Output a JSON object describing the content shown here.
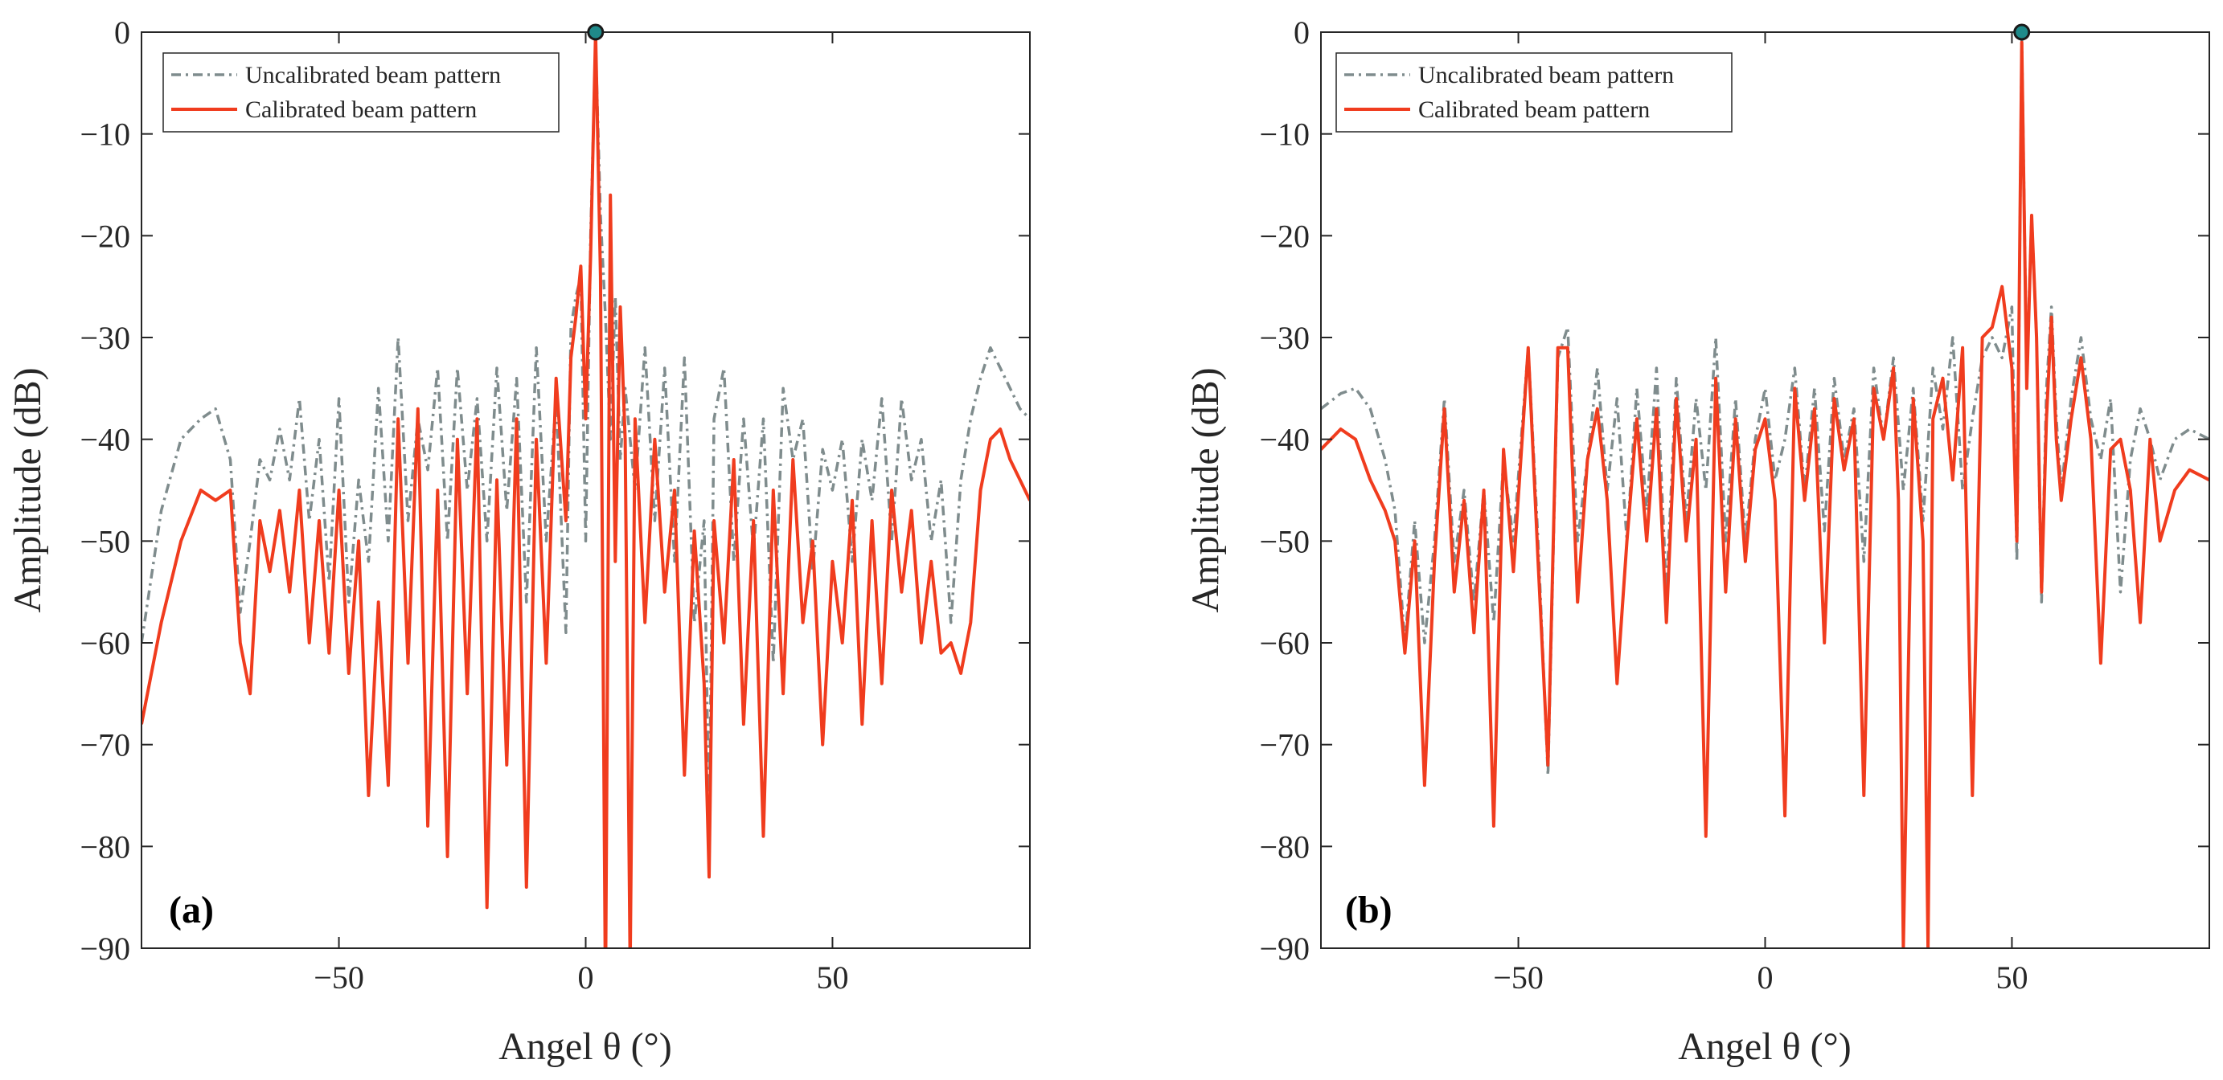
{
  "chart_data": [
    {
      "type": "line",
      "panel_label": "(a)",
      "xlabel": "Angel θ (°)",
      "ylabel": "Amplitude (dB)",
      "xlim": [
        -90,
        90
      ],
      "ylim": [
        -90,
        0
      ],
      "xticks": [
        -50,
        0,
        50
      ],
      "xtick_labels": [
        "−50",
        "0",
        "50"
      ],
      "yticks": [
        0,
        -10,
        -20,
        -30,
        -40,
        -50,
        -60,
        -70,
        -80,
        -90
      ],
      "ytick_labels": [
        "0",
        "−10",
        "−20",
        "−30",
        "−40",
        "−50",
        "−60",
        "−70",
        "−80",
        "−90"
      ],
      "grid": false,
      "legend_position": "top-left",
      "peak_marker": {
        "x": 2,
        "y": 0,
        "color": "#1f8a8a"
      },
      "series": [
        {
          "name": "Uncalibrated beam pattern",
          "color": "#7f8c8d",
          "dash": "dashdot",
          "x": [
            -90,
            -86,
            -82,
            -78,
            -75,
            -72,
            -70,
            -68,
            -66,
            -64,
            -62,
            -60,
            -58,
            -56,
            -54,
            -52,
            -50,
            -48,
            -46,
            -44,
            -42,
            -40,
            -38,
            -36,
            -34,
            -32,
            -30,
            -28,
            -26,
            -24,
            -22,
            -20,
            -18,
            -16,
            -14,
            -12,
            -10,
            -8,
            -6,
            -4,
            -3,
            -2,
            -1,
            0,
            1,
            2,
            3,
            4,
            5,
            6,
            7,
            8,
            10,
            12,
            14,
            16,
            18,
            20,
            22,
            24,
            25,
            26,
            28,
            30,
            32,
            34,
            36,
            38,
            40,
            42,
            44,
            46,
            48,
            50,
            52,
            54,
            56,
            58,
            60,
            62,
            64,
            66,
            68,
            70,
            72,
            74,
            76,
            78,
            80,
            82,
            84,
            86,
            88,
            90
          ],
          "y": [
            -60,
            -47,
            -40,
            -38,
            -37,
            -42,
            -57,
            -50,
            -42,
            -44,
            -39,
            -44,
            -36,
            -48,
            -40,
            -54,
            -36,
            -56,
            -44,
            -52,
            -35,
            -50,
            -30,
            -48,
            -38,
            -43,
            -33,
            -50,
            -33,
            -45,
            -36,
            -50,
            -33,
            -47,
            -34,
            -56,
            -31,
            -50,
            -36,
            -59,
            -29,
            -26,
            -24,
            -50,
            -20,
            -1,
            -18,
            -28,
            -40,
            -26,
            -42,
            -35,
            -45,
            -31,
            -48,
            -33,
            -52,
            -32,
            -58,
            -48,
            -78,
            -38,
            -33,
            -52,
            -38,
            -51,
            -38,
            -62,
            -35,
            -42,
            -38,
            -53,
            -41,
            -45,
            -40,
            -52,
            -40,
            -46,
            -36,
            -50,
            -36,
            -44,
            -40,
            -50,
            -44,
            -58,
            -44,
            -38,
            -34,
            -31,
            -33,
            -35,
            -37,
            -38
          ]
        },
        {
          "name": "Calibrated beam pattern",
          "color": "#f03c1e",
          "dash": "solid",
          "x": [
            -90,
            -86,
            -82,
            -78,
            -75,
            -72,
            -70,
            -68,
            -66,
            -64,
            -62,
            -60,
            -58,
            -56,
            -54,
            -52,
            -50,
            -48,
            -46,
            -44,
            -42,
            -40,
            -38,
            -36,
            -34,
            -32,
            -30,
            -28,
            -26,
            -24,
            -22,
            -20,
            -18,
            -16,
            -14,
            -12,
            -10,
            -8,
            -6,
            -4,
            -3,
            -2,
            -1,
            0,
            1,
            2,
            3,
            4,
            5,
            6,
            7,
            8,
            9,
            10,
            12,
            14,
            16,
            18,
            20,
            22,
            24,
            25,
            26,
            28,
            30,
            32,
            34,
            36,
            38,
            40,
            42,
            44,
            46,
            48,
            50,
            52,
            54,
            56,
            58,
            60,
            62,
            64,
            66,
            68,
            70,
            72,
            74,
            76,
            78,
            80,
            82,
            84,
            86,
            88,
            90
          ],
          "y": [
            -68,
            -58,
            -50,
            -45,
            -46,
            -45,
            -60,
            -65,
            -48,
            -53,
            -47,
            -55,
            -45,
            -60,
            -48,
            -61,
            -45,
            -63,
            -50,
            -75,
            -56,
            -74,
            -38,
            -62,
            -37,
            -78,
            -45,
            -81,
            -40,
            -65,
            -38,
            -86,
            -44,
            -72,
            -38,
            -84,
            -40,
            -62,
            -34,
            -48,
            -32,
            -28,
            -23,
            -38,
            -22,
            0,
            -24,
            -95,
            -16,
            -52,
            -27,
            -40,
            -92,
            -38,
            -58,
            -40,
            -55,
            -45,
            -73,
            -49,
            -64,
            -83,
            -48,
            -60,
            -42,
            -68,
            -48,
            -79,
            -45,
            -65,
            -42,
            -58,
            -50,
            -70,
            -52,
            -60,
            -46,
            -68,
            -48,
            -64,
            -45,
            -55,
            -47,
            -60,
            -52,
            -61,
            -60,
            -63,
            -58,
            -45,
            -40,
            -39,
            -42,
            -44,
            -46
          ]
        }
      ]
    },
    {
      "type": "line",
      "panel_label": "(b)",
      "xlabel": "Angel θ (°)",
      "ylabel": "Amplitude (dB)",
      "xlim": [
        -90,
        90
      ],
      "ylim": [
        -90,
        0
      ],
      "xticks": [
        -50,
        0,
        50
      ],
      "xtick_labels": [
        "−50",
        "0",
        "50"
      ],
      "yticks": [
        0,
        -10,
        -20,
        -30,
        -40,
        -50,
        -60,
        -70,
        -80,
        -90
      ],
      "ytick_labels": [
        "0",
        "−10",
        "−20",
        "−30",
        "−40",
        "−50",
        "−60",
        "−70",
        "−80",
        "−90"
      ],
      "grid": false,
      "legend_position": "top-left",
      "peak_marker": {
        "x": 52,
        "y": 0,
        "color": "#1f8a8a"
      },
      "series": [
        {
          "name": "Uncalibrated beam pattern",
          "color": "#7f8c8d",
          "dash": "dashdot",
          "x": [
            -90,
            -86,
            -83,
            -80,
            -77,
            -75,
            -73,
            -71,
            -69,
            -67,
            -65,
            -63,
            -61,
            -59,
            -57,
            -55,
            -53,
            -51,
            -48,
            -46,
            -44,
            -42,
            -40,
            -38,
            -36,
            -34,
            -32,
            -30,
            -28,
            -26,
            -24,
            -22,
            -20,
            -18,
            -16,
            -14,
            -12,
            -10,
            -8,
            -6,
            -4,
            -2,
            0,
            2,
            4,
            6,
            8,
            10,
            12,
            14,
            16,
            18,
            20,
            22,
            24,
            26,
            28,
            30,
            32,
            34,
            36,
            38,
            40,
            42,
            44,
            46,
            48,
            50,
            51,
            52,
            53,
            54,
            55,
            56,
            57,
            58,
            59,
            60,
            62,
            64,
            66,
            68,
            70,
            72,
            74,
            76,
            78,
            80,
            83,
            86,
            90
          ],
          "y": [
            -37,
            -35.5,
            -35,
            -37,
            -42,
            -47,
            -60,
            -48,
            -60,
            -50,
            -36,
            -52,
            -45,
            -56,
            -45,
            -58,
            -42,
            -50,
            -31,
            -50,
            -73,
            -32,
            -29,
            -50,
            -42,
            -33,
            -45,
            -36,
            -50,
            -35,
            -47,
            -33,
            -55,
            -34,
            -48,
            -36,
            -45,
            -30,
            -50,
            -36,
            -50,
            -40,
            -35,
            -44,
            -40,
            -33,
            -45,
            -35,
            -49,
            -34,
            -42,
            -37,
            -52,
            -33,
            -40,
            -32,
            -45,
            -35,
            -48,
            -33,
            -39,
            -30,
            -45,
            -38,
            -32,
            -30,
            -32,
            -27,
            -52,
            -0.5,
            -34,
            -18,
            -30,
            -56,
            -35,
            -27,
            -38,
            -45,
            -36,
            -30,
            -38,
            -42,
            -36,
            -55,
            -42,
            -37,
            -40,
            -44,
            -40,
            -39,
            -40
          ]
        },
        {
          "name": "Calibrated beam pattern",
          "color": "#f03c1e",
          "dash": "solid",
          "x": [
            -90,
            -86,
            -83,
            -80,
            -77,
            -75,
            -73,
            -71,
            -69,
            -67,
            -65,
            -63,
            -61,
            -59,
            -57,
            -55,
            -53,
            -51,
            -48,
            -46,
            -44,
            -42,
            -40,
            -38,
            -36,
            -34,
            -32,
            -30,
            -28,
            -26,
            -24,
            -22,
            -20,
            -18,
            -16,
            -14,
            -12,
            -10,
            -8,
            -6,
            -4,
            -2,
            0,
            2,
            4,
            6,
            8,
            10,
            12,
            14,
            16,
            18,
            20,
            22,
            24,
            26,
            27,
            28,
            30,
            32,
            33,
            34,
            36,
            38,
            40,
            42,
            44,
            46,
            48,
            50,
            51,
            52,
            53,
            54,
            55,
            56,
            57,
            58,
            59,
            60,
            62,
            64,
            66,
            68,
            70,
            72,
            74,
            76,
            78,
            80,
            83,
            86,
            90
          ],
          "y": [
            -41,
            -39,
            -40,
            -44,
            -47,
            -50,
            -61,
            -50,
            -74,
            -52,
            -37,
            -55,
            -46,
            -59,
            -45,
            -78,
            -41,
            -53,
            -31,
            -52,
            -72,
            -31,
            -31,
            -56,
            -42,
            -37,
            -46,
            -64,
            -50,
            -38,
            -50,
            -37,
            -58,
            -36,
            -50,
            -40,
            -79,
            -34,
            -55,
            -38,
            -52,
            -41,
            -38,
            -46,
            -77,
            -35,
            -46,
            -37,
            -60,
            -36,
            -43,
            -38,
            -75,
            -35,
            -40,
            -33,
            -46,
            -90,
            -36,
            -50,
            -90,
            -38,
            -34,
            -44,
            -31,
            -75,
            -30,
            -29,
            -25,
            -33,
            -50,
            -1,
            -35,
            -18,
            -30,
            -55,
            -38,
            -28,
            -40,
            -46,
            -38,
            -32,
            -40,
            -62,
            -41,
            -40,
            -45,
            -58,
            -40,
            -50,
            -45,
            -43,
            -44
          ]
        }
      ]
    }
  ]
}
